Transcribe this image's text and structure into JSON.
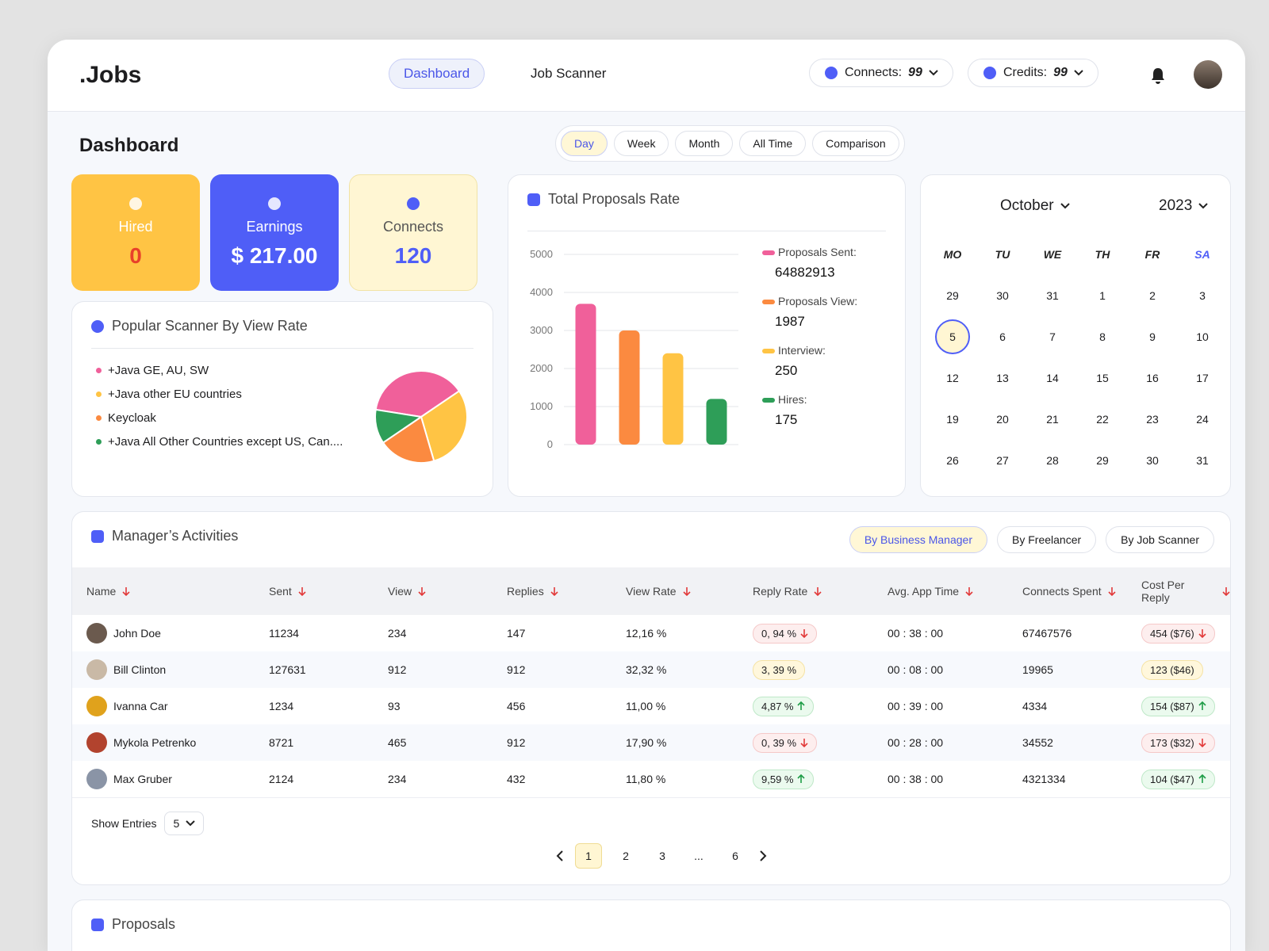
{
  "header": {
    "logo": ".Jobs",
    "nav": [
      "Dashboard",
      "Job Scanner"
    ],
    "connects_label": "Connects:",
    "connects_value": "99",
    "credits_label": "Credits:",
    "credits_value": "99"
  },
  "page_title": "Dashboard",
  "periods": [
    "Day",
    "Week",
    "Month",
    "All Time",
    "Comparison"
  ],
  "stats": [
    {
      "label": "Hired",
      "value": "0"
    },
    {
      "label": "Earnings",
      "value": "$ 217.00"
    },
    {
      "label": "Connects",
      "value": "120"
    }
  ],
  "calendar": {
    "month": "October",
    "year": "2023",
    "weekdays": [
      "MO",
      "TU",
      "WE",
      "TH",
      "FR",
      "SA"
    ],
    "weeks": [
      [
        29,
        30,
        31,
        1,
        2,
        3
      ],
      [
        5,
        6,
        7,
        8,
        9,
        10
      ],
      [
        12,
        13,
        14,
        15,
        16,
        17
      ],
      [
        19,
        20,
        21,
        22,
        23,
        24
      ],
      [
        26,
        27,
        28,
        29,
        30,
        31
      ]
    ],
    "selected": [
      1,
      0
    ]
  },
  "activities": {
    "title": "Manager’s Activities",
    "filters": [
      "By Business Manager",
      "By Freelancer",
      "By Job Scanner"
    ],
    "columns": [
      "Name",
      "Sent",
      "View",
      "Replies",
      "View Rate",
      "Reply Rate",
      "Avg. App Time",
      "Connects Spent",
      "Cost Per Reply"
    ],
    "rows": [
      {
        "cells": [
          "John Doe",
          "11234",
          "234",
          "147",
          "12,16 %",
          "0, 94 %",
          "00 : 38 : 00",
          "67467576",
          "454 ($76)"
        ],
        "reply_trend": "down",
        "cost_trend": "down",
        "avatar": "#6b5a4e"
      },
      {
        "cells": [
          "Bill Clinton",
          "127631",
          "912",
          "912",
          "32,32 %",
          "3, 39 %",
          "00 : 08 : 00",
          "19965",
          "123 ($46)"
        ],
        "reply_trend": "neutral",
        "cost_trend": "neutral",
        "avatar": "#c9b9a6"
      },
      {
        "cells": [
          "Ivanna Car",
          "1234",
          "93",
          "456",
          "11,00 %",
          "4,87 %",
          "00 : 39 : 00",
          "4334",
          "154 ($87)"
        ],
        "reply_trend": "up",
        "cost_trend": "up",
        "avatar": "#e0a21c"
      },
      {
        "cells": [
          "Mykola Petrenko",
          "8721",
          "465",
          "912",
          "17,90 %",
          "0, 39 %",
          "00 : 28 : 00",
          "34552",
          "173 ($32)"
        ],
        "reply_trend": "down",
        "cost_trend": "down",
        "avatar": "#b2432e"
      },
      {
        "cells": [
          "Max Gruber",
          "2124",
          "234",
          "432",
          "11,80 %",
          "9,59 %",
          "00 : 38 : 00",
          "4321334",
          "104 ($47)"
        ],
        "reply_trend": "up",
        "cost_trend": "up",
        "avatar": "#8a94a6"
      }
    ],
    "show_entries_label": "Show Entries",
    "show_entries_value": "5",
    "pagination": [
      "1",
      "2",
      "3",
      "...",
      "6"
    ],
    "current_page": 0
  },
  "proposals_title": "Proposals",
  "chart_data": [
    {
      "type": "pie",
      "title": "Popular Scanner By View Rate",
      "categories": [
        "+Java GE, AU, SW",
        "+Java other EU countries",
        "Keycloak",
        "+Java All Other Countries except US, Can...."
      ],
      "values": [
        38,
        30,
        20,
        12
      ],
      "colors": [
        "#f0609a",
        "#ffc444",
        "#fb8a40",
        "#2e9e58"
      ]
    },
    {
      "type": "bar",
      "title": "Total Proposals Rate",
      "ylim": [
        0,
        5000
      ],
      "yticks": [
        0,
        1000,
        2000,
        3000,
        4000,
        5000
      ],
      "grid": true,
      "series": [
        {
          "name": "Proposals Sent:",
          "color": "#f0609a",
          "values": [
            3700
          ],
          "total": "64882913"
        },
        {
          "name": "Proposals View:",
          "color": "#fb8a40",
          "values": [
            3000
          ],
          "total": "1987"
        },
        {
          "name": "Interview:",
          "color": "#ffc444",
          "values": [
            2400
          ],
          "total": "250"
        },
        {
          "name": "Hires:",
          "color": "#2e9e58",
          "values": [
            1200
          ],
          "total": "175"
        }
      ]
    }
  ]
}
